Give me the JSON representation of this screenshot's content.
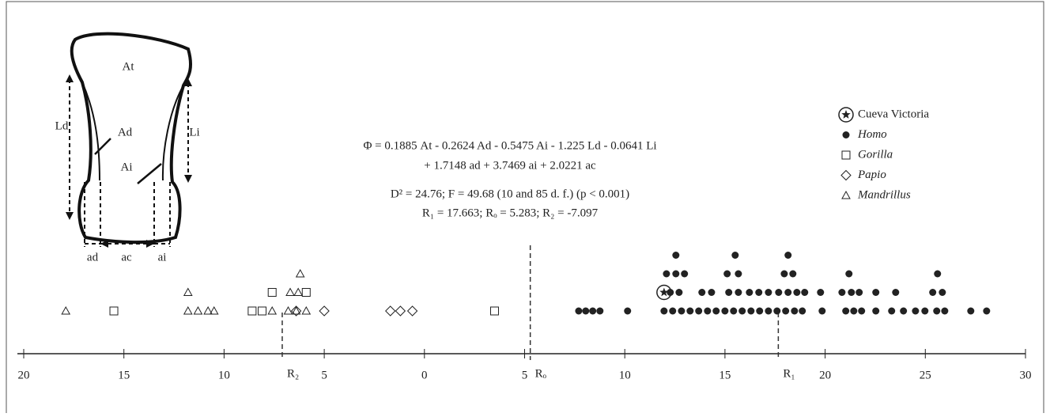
{
  "chart_data": {
    "type": "strip",
    "equations": [
      "Φ = 0.1885 At - 0.2624 Ad - 0.5475 Ai - 1.225 Ld - 0.0641 Li",
      "+ 1.7148 ad + 3.7469 ai + 2.0221 ac",
      "D² = 24.76; F = 49.68 (10 and 85 d. f.) (p < 0.001)",
      "R₁ = 17.663; Rₒ = 5.283; R₂ = -7.097"
    ],
    "xlim": [
      -20,
      30
    ],
    "xticks": [
      {
        "value": -20,
        "label": "20"
      },
      {
        "value": -15,
        "label": "15"
      },
      {
        "value": -10,
        "label": "10"
      },
      {
        "value": -5,
        "label": "5"
      },
      0,
      {
        "value": 5,
        "label": "5"
      },
      10,
      15,
      20,
      25,
      30
    ],
    "reference_lines": [
      {
        "label": "R₂",
        "value": -7.097
      },
      {
        "label": "Rₒ",
        "value": 5.283
      },
      {
        "label": "R₁",
        "value": 17.663
      }
    ],
    "series": [
      {
        "name": "Cueva Victoria",
        "marker": "star",
        "color": "#222",
        "x": [
          11.96
        ],
        "level": [
          2
        ]
      },
      {
        "name": "Homo",
        "marker": "dot",
        "color": "#222",
        "x": [
          7.7,
          8.05,
          8.4,
          8.76,
          10.14,
          11.96,
          12.39,
          12.83,
          13.26,
          13.69,
          14.13,
          14.56,
          15.0,
          15.43,
          15.86,
          16.3,
          16.73,
          17.17,
          17.6,
          18.03,
          18.47,
          18.86,
          19.85,
          21.03,
          21.43,
          21.82,
          22.53,
          23.32,
          23.91,
          24.51,
          24.98,
          25.57,
          25.97,
          27.27,
          28.06,
          12.27,
          12.71,
          13.85,
          14.33,
          15.19,
          15.67,
          16.22,
          16.69,
          17.17,
          17.68,
          18.15,
          18.59,
          18.98,
          19.77,
          20.84,
          21.31,
          21.7,
          22.53,
          23.52,
          25.37,
          25.85,
          12.08,
          12.55,
          12.98,
          15.11,
          15.67,
          17.96,
          18.39,
          21.19,
          25.61,
          12.55,
          15.51,
          18.15
        ],
        "level": [
          1,
          1,
          1,
          1,
          1,
          1,
          1,
          1,
          1,
          1,
          1,
          1,
          1,
          1,
          1,
          1,
          1,
          1,
          1,
          1,
          1,
          1,
          1,
          1,
          1,
          1,
          1,
          1,
          1,
          1,
          1,
          1,
          1,
          1,
          1,
          2,
          2,
          2,
          2,
          2,
          2,
          2,
          2,
          2,
          2,
          2,
          2,
          2,
          2,
          2,
          2,
          2,
          2,
          2,
          2,
          2,
          3,
          3,
          3,
          3,
          3,
          3,
          3,
          3,
          3,
          4,
          4,
          4
        ]
      },
      {
        "name": "Gorilla",
        "marker": "square",
        "color": "#222",
        "x": [
          -15.5,
          -8.6,
          -8.1,
          -7.6,
          -5.9,
          3.5
        ],
        "level": [
          1,
          1,
          1,
          2,
          2,
          1
        ]
      },
      {
        "name": "Papio",
        "marker": "diamond",
        "color": "#222",
        "x": [
          -6.4,
          -5.0,
          -1.7,
          -1.2,
          -0.6
        ],
        "level": [
          1,
          1,
          1,
          1,
          1
        ]
      },
      {
        "name": "Mandrillus",
        "marker": "triangle",
        "color": "#222",
        "x": [
          -17.9,
          -11.8,
          -11.3,
          -10.8,
          -11.8,
          -10.5,
          -7.6,
          -6.8,
          -6.4,
          -5.9,
          -6.7,
          -6.3,
          -6.2
        ],
        "level": [
          1,
          1,
          1,
          1,
          2,
          1,
          1,
          1,
          1,
          1,
          2,
          2,
          3
        ]
      }
    ]
  },
  "diagram": {
    "labels": [
      "At",
      "Ad",
      "Ai",
      "Ld",
      "Li",
      "ad",
      "ac",
      "ai"
    ]
  }
}
